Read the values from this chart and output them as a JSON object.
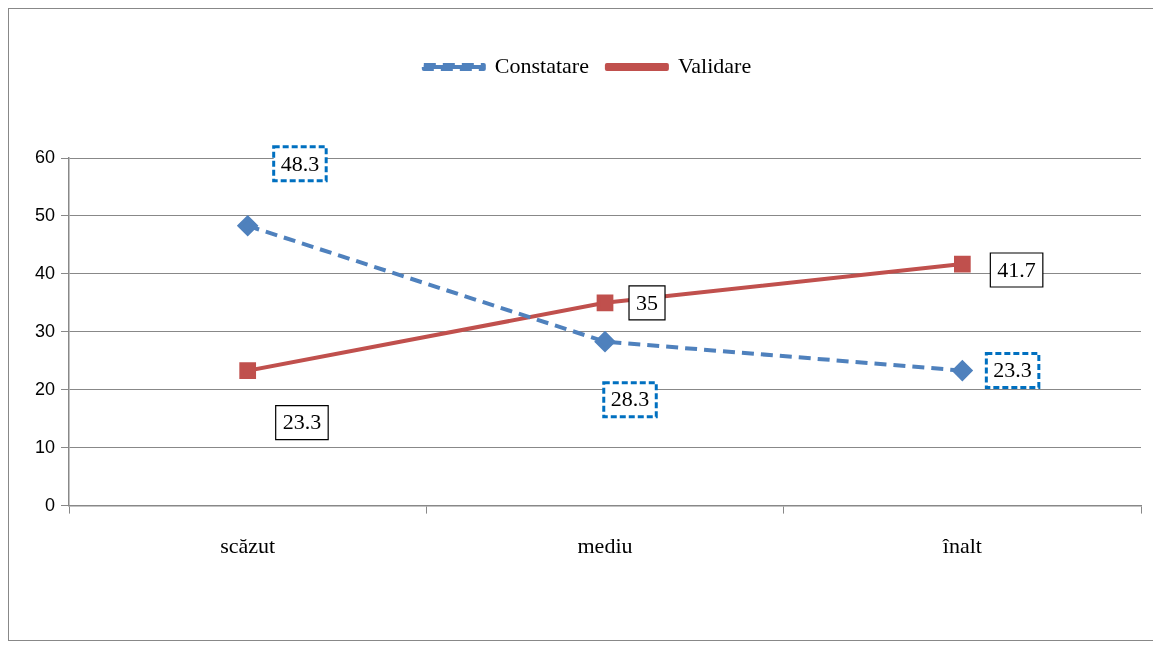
{
  "chart_data": {
    "type": "line",
    "categories": [
      "scăzut",
      "mediu",
      "înalt"
    ],
    "series": [
      {
        "name": "Constatare",
        "color": "#4f81bd",
        "values": [
          48.3,
          28.3,
          23.3
        ],
        "marker": "diamond",
        "line_style": "dashed"
      },
      {
        "name": "Validare",
        "color": "#c0504d",
        "values": [
          23.3,
          35,
          41.7
        ],
        "marker": "square",
        "line_style": "solid"
      }
    ],
    "ylim": [
      0,
      60
    ],
    "yticks": [
      0,
      10,
      20,
      30,
      40,
      50,
      60
    ],
    "grid": "y",
    "legend": "top",
    "data_labels": true
  }
}
